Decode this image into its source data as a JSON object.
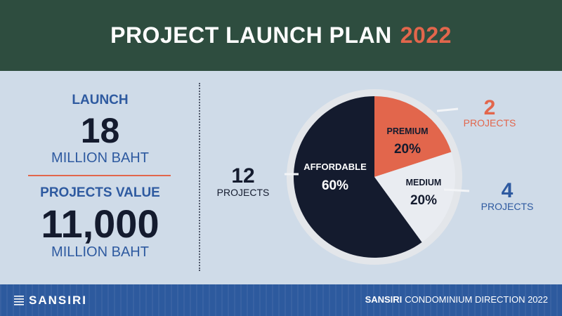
{
  "header": {
    "title": "PROJECT LAUNCH PLAN",
    "year": "2022"
  },
  "left": {
    "launch_label": "LAUNCH",
    "launch_value": "18",
    "launch_unit": "MILLION BAHT",
    "value_label": "PROJECTS VALUE",
    "value_value": "11,000",
    "value_unit": "MILLION BAHT"
  },
  "chart_data": {
    "type": "pie",
    "slices": [
      {
        "label": "AFFORDABLE",
        "value": 60,
        "percent_label": "60%",
        "count": "12",
        "count_unit": "PROJECTS",
        "color": "#141b2e"
      },
      {
        "label": "PREMIUM",
        "value": 20,
        "percent_label": "20%",
        "count": "2",
        "count_unit": "PROJECTS",
        "color": "#e2664c"
      },
      {
        "label": "MEDIUM",
        "value": 20,
        "percent_label": "20%",
        "count": "4",
        "count_unit": "PROJECTS",
        "color": "#e9ecf1"
      }
    ]
  },
  "colors": {
    "header_bg": "#2e4d3f",
    "accent": "#e2664c",
    "blue": "#2e5aa0",
    "dark": "#141b2e",
    "page_bg": "#cfdbe8",
    "footer_bg": "#2d5a9e"
  },
  "footer": {
    "logo_text": "SANSIRI",
    "brand": "SANSIRI",
    "tagline": "CONDOMINIUM DIRECTION 2022"
  }
}
